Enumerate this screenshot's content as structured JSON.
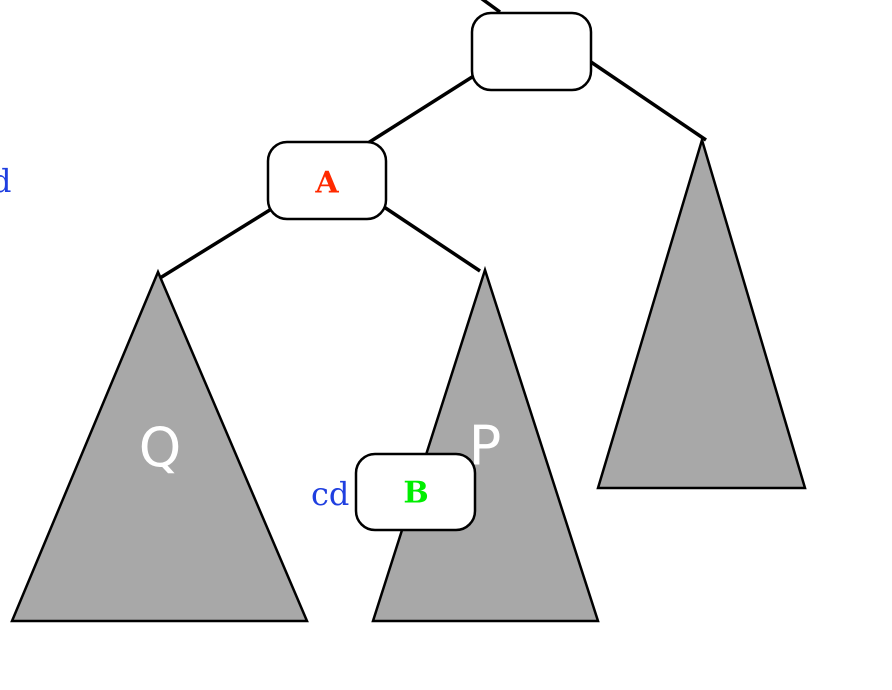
{
  "colors": {
    "node_a_label": "#ff2a00",
    "node_b_label": "#00ee00",
    "side_label": "#1f3fe0",
    "subtree_fill": "#a8a8a8"
  },
  "nodes": {
    "root": {
      "label": ""
    },
    "a": {
      "label": "A"
    },
    "b": {
      "label": "B"
    }
  },
  "subtrees": {
    "q": {
      "label": "Q"
    },
    "p": {
      "label": "P"
    },
    "right": {
      "label": ""
    }
  },
  "side_labels": {
    "left_edge": "d",
    "near_b": "cd"
  }
}
